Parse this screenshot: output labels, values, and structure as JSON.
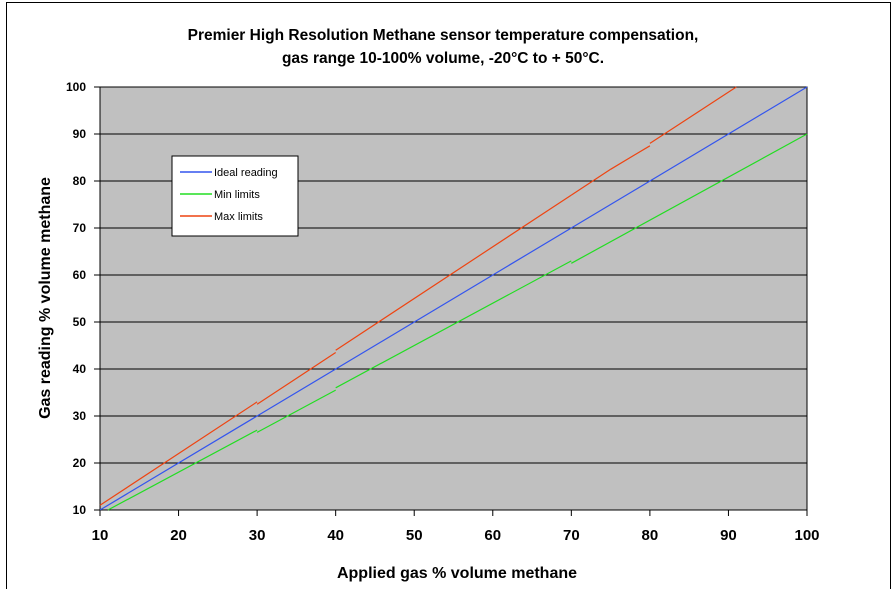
{
  "chart_data": {
    "type": "line",
    "title_line1": "Premier High Resolution Methane sensor temperature compensation,",
    "title_line2": "gas range 10-100% volume, -20°C to + 50°C.",
    "xlabel": "Applied gas % volume methane",
    "ylabel": "Gas reading % volume methane",
    "xlim": [
      10,
      100
    ],
    "ylim": [
      10,
      100
    ],
    "xticks": [
      10,
      20,
      30,
      40,
      50,
      60,
      70,
      80,
      90,
      100
    ],
    "yticks": [
      10,
      20,
      30,
      40,
      50,
      60,
      70,
      80,
      90,
      100
    ],
    "grid": "horizontal",
    "legend_position": "upper-left",
    "series": [
      {
        "name": "Ideal reading",
        "color": "#3355ee",
        "segments": [
          [
            [
              10,
              10
            ],
            [
              30,
              30
            ]
          ],
          [
            [
              30,
              30
            ],
            [
              40,
              40
            ]
          ],
          [
            [
              40,
              40
            ],
            [
              70,
              70
            ]
          ],
          [
            [
              70,
              70
            ],
            [
              100,
              100
            ]
          ]
        ]
      },
      {
        "name": "Min limits",
        "color": "#22dd22",
        "segments": [
          [
            [
              11,
              9.9
            ],
            [
              30,
              27
            ]
          ],
          [
            [
              30,
              26.5
            ],
            [
              40,
              35.5
            ]
          ],
          [
            [
              40,
              36
            ],
            [
              70,
              63
            ]
          ],
          [
            [
              70,
              62.5
            ],
            [
              100,
              90
            ]
          ]
        ]
      },
      {
        "name": "Max limits",
        "color": "#ee4411",
        "segments": [
          [
            [
              10,
              11
            ],
            [
              30,
              33
            ]
          ],
          [
            [
              30,
              32.5
            ],
            [
              40,
              43.5
            ]
          ],
          [
            [
              40,
              44
            ],
            [
              70,
              77
            ]
          ],
          [
            [
              70,
              77
            ],
            [
              75,
              82.5
            ]
          ],
          [
            [
              75,
              82.5
            ],
            [
              80,
              87.5
            ]
          ],
          [
            [
              80,
              88
            ],
            [
              91,
              100
            ]
          ]
        ]
      }
    ]
  }
}
